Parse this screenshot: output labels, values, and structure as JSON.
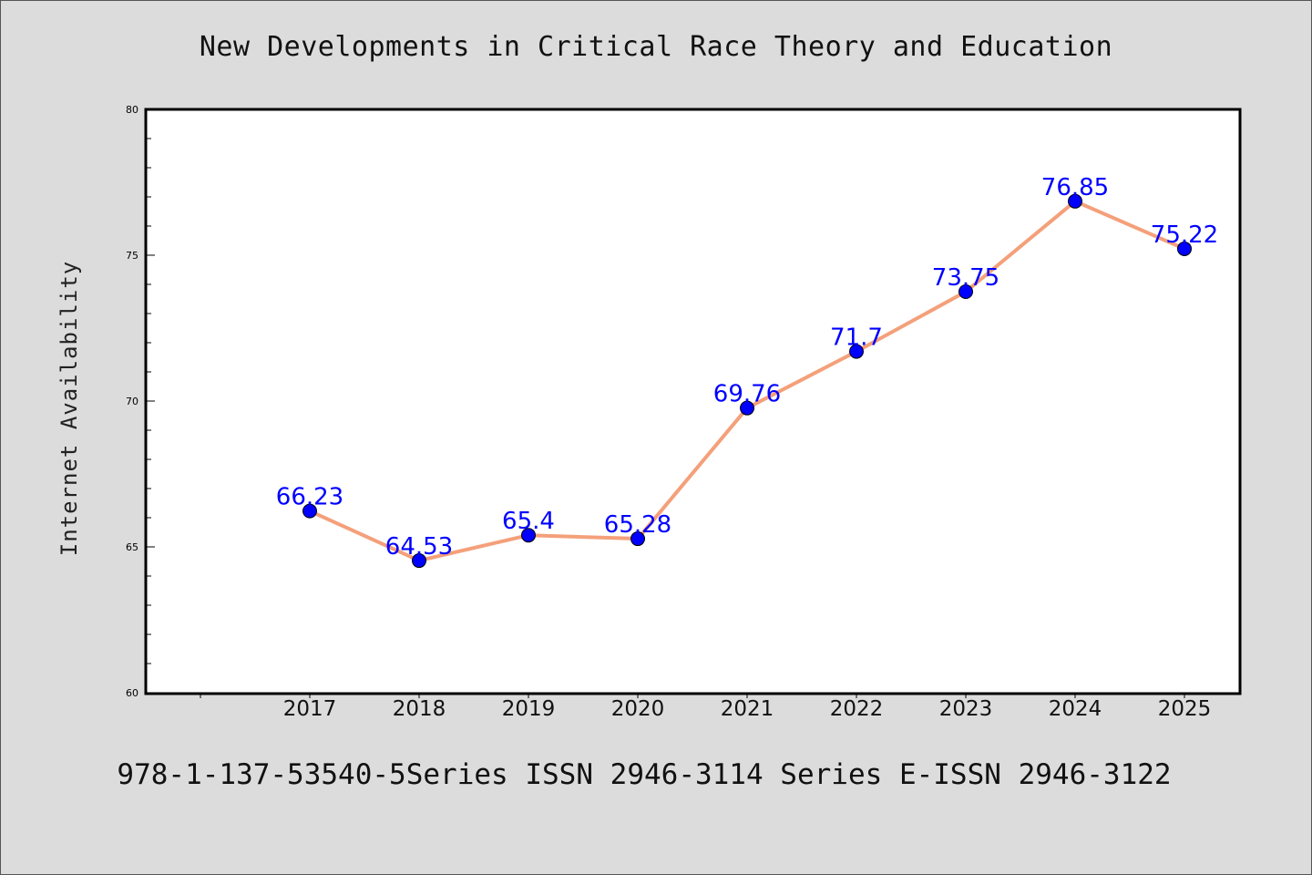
{
  "chart_data": {
    "type": "line",
    "title": "New Developments in Critical Race Theory and Education",
    "xlabel": "",
    "ylabel": "Internet Availability",
    "categories": [
      "2017",
      "2018",
      "2019",
      "2020",
      "2021",
      "2022",
      "2023",
      "2024",
      "2025"
    ],
    "series": [
      {
        "values": [
          66.23,
          64.53,
          65.4,
          65.28,
          69.76,
          71.7,
          73.75,
          76.85,
          75.22
        ],
        "data_labels": [
          "66.23",
          "64.53",
          "65.4",
          "65.28",
          "69.76",
          "71.7",
          "73.75",
          "76.85",
          "75.22"
        ],
        "line_color": "#f4a07a",
        "marker_color": "#0000ff",
        "label_color": "#0000ff"
      }
    ],
    "ylim": [
      60,
      80
    ],
    "yticks": [
      "60",
      "65",
      "70",
      "75",
      "80"
    ],
    "grid": false,
    "legend": "none"
  },
  "footer_text": "978-1-137-53540-5Series ISSN 2946-3114 Series E-ISSN 2946-3122",
  "colors": {
    "background": "#dcdcdc",
    "plot_background": "#ffffff",
    "axis": "#000000"
  }
}
